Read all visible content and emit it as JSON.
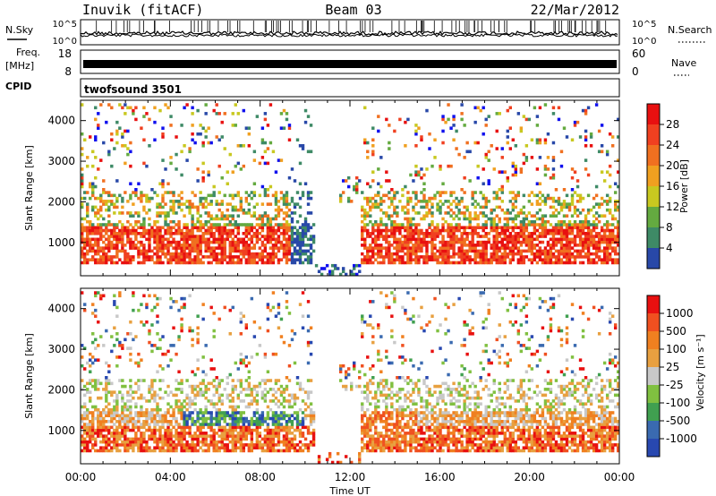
{
  "header": {
    "station": "Inuvik (fitACF)",
    "beam": "Beam 03",
    "date": "22/Mar/2012"
  },
  "summary_panels": {
    "nsky_label": "N.Sky",
    "nsearch_label": "N.Search",
    "nsky_ticks": [
      "10^5",
      "10^0"
    ],
    "nsearch_ticks": [
      "10^5",
      "10^0"
    ],
    "freq_label_1": "Freq.",
    "freq_label_2": "[MHz]",
    "freq_ticks": [
      "18",
      "8"
    ],
    "nave_label": "Nave",
    "nave_ticks": [
      "60",
      "0"
    ],
    "cpid_label": "CPID",
    "cpid_value": "twofsound 3501"
  },
  "colors": {
    "power": [
      "#1010ee",
      "#2848a8",
      "#3e8a66",
      "#64aa40",
      "#c8c820",
      "#f0a020",
      "#f07020",
      "#f04020",
      "#e81010"
    ],
    "velocity": [
      "#2848b0",
      "#3a6ab0",
      "#40a050",
      "#80c040",
      "#c8c8c8",
      "#e8a040",
      "#f08020",
      "#f05020",
      "#e81010"
    ]
  },
  "chart_data": [
    {
      "type": "heatmap",
      "title": "Power",
      "xlabel": "Time UT",
      "ylabel": "Slant Range [km]",
      "x_ticks": [
        "00:00",
        "04:00",
        "08:00",
        "12:00",
        "16:00",
        "20:00",
        "00:00"
      ],
      "x_range_hours": [
        0,
        24
      ],
      "y_ticks": [
        1000,
        2000,
        3000,
        4000
      ],
      "y_range_km": [
        180,
        4500
      ],
      "colorbar_label": "Power [dB]",
      "colorbar_ticks": [
        4,
        8,
        12,
        16,
        20,
        24,
        28
      ],
      "colorbar_range": [
        0,
        32
      ],
      "features": [
        {
          "name": "main-band",
          "t": [
            0,
            10
          ],
          "range_km": [
            600,
            1500
          ],
          "level": "high"
        },
        {
          "name": "main-band-late",
          "t": [
            13,
            24
          ],
          "range_km": [
            400,
            1500
          ],
          "level": "high"
        },
        {
          "name": "far-echoes",
          "t": [
            1,
            24
          ],
          "range_km": [
            2000,
            4400
          ],
          "level": "mixed"
        }
      ]
    },
    {
      "type": "heatmap",
      "title": "Velocity",
      "xlabel": "Time UT",
      "ylabel": "Slant Range [km]",
      "x_ticks": [
        "00:00",
        "04:00",
        "08:00",
        "12:00",
        "16:00",
        "20:00",
        "00:00"
      ],
      "x_range_hours": [
        0,
        24
      ],
      "y_ticks": [
        1000,
        2000,
        3000,
        4000
      ],
      "y_range_km": [
        180,
        4500
      ],
      "colorbar_label": "Velocity [m s⁻¹]",
      "colorbar_ticks": [
        1000,
        500,
        100,
        25,
        -25,
        -100,
        -500,
        -1000
      ],
      "features": [
        {
          "name": "main-band",
          "t": [
            0,
            24
          ],
          "range_km": [
            400,
            1500
          ],
          "velocity": "away (orange/red)"
        },
        {
          "name": "mid-band",
          "t": [
            5,
            10
          ],
          "range_km": [
            800,
            1500
          ],
          "velocity": "toward (green/blue)"
        },
        {
          "name": "ground-scatter",
          "t": [
            0,
            24
          ],
          "range_km": [
            1500,
            2200
          ],
          "velocity": "low (grey)"
        }
      ]
    }
  ]
}
